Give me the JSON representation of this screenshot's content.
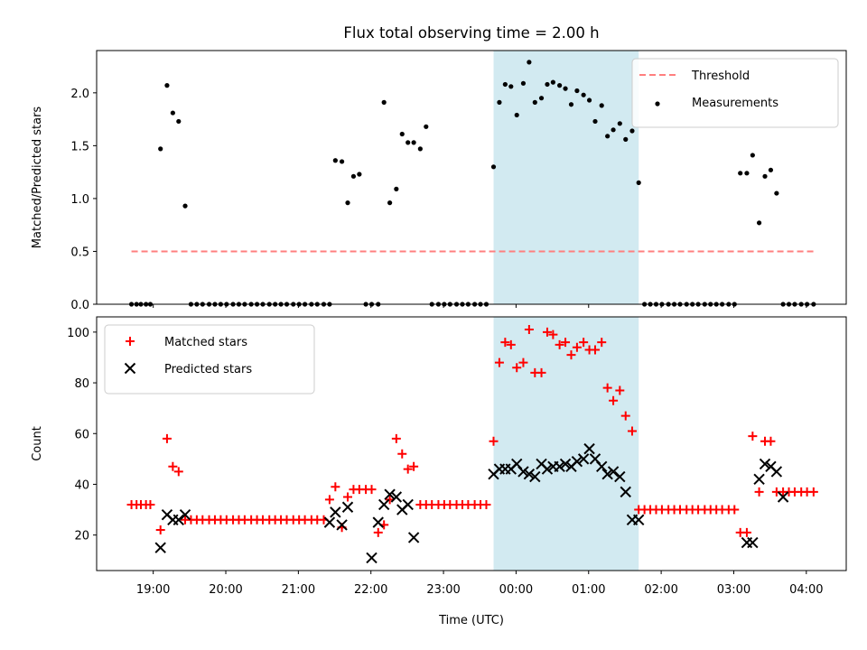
{
  "title": "Flux total observing time = 2.00 h",
  "x_axis": {
    "label": "Time (UTC)",
    "ticks": [
      {
        "t": 19.0,
        "label": "19:00"
      },
      {
        "t": 20.0,
        "label": "20:00"
      },
      {
        "t": 21.0,
        "label": "21:00"
      },
      {
        "t": 22.0,
        "label": "22:00"
      },
      {
        "t": 23.0,
        "label": "23:00"
      },
      {
        "t": 24.0,
        "label": "00:00"
      },
      {
        "t": 25.0,
        "label": "01:00"
      },
      {
        "t": 26.0,
        "label": "02:00"
      },
      {
        "t": 27.0,
        "label": "03:00"
      },
      {
        "t": 28.0,
        "label": "04:00"
      }
    ]
  },
  "chart_data": [
    {
      "type": "scatter",
      "ylabel": "Matched/Predicted stars",
      "xlim": [
        18.22,
        28.55
      ],
      "ylim": [
        0,
        2.4
      ],
      "yticks": [
        0.0,
        0.5,
        1.0,
        1.5,
        2.0
      ],
      "ytick_labels": [
        "0.0",
        "0.5",
        "1.0",
        "1.5",
        "2.0"
      ],
      "highlight_span": {
        "from": 23.69,
        "to": 25.69,
        "color": "#add8e6"
      },
      "legend": {
        "position": "upper right",
        "entries": [
          "Threshold",
          "Measurements"
        ]
      },
      "series": [
        {
          "name": "Threshold",
          "style": "dashed-line",
          "color": "#ff7f7f",
          "x": [
            18.7,
            28.1
          ],
          "y": [
            0.5,
            0.5
          ]
        },
        {
          "name": "Measurements",
          "style": "dot",
          "color": "#000000",
          "x": [
            18.7,
            18.77,
            18.83,
            18.9,
            18.96,
            19.1,
            19.19,
            19.27,
            19.35,
            19.44,
            19.52,
            19.6,
            19.68,
            19.77,
            19.85,
            19.93,
            20.01,
            20.1,
            20.18,
            20.26,
            20.35,
            20.43,
            20.51,
            20.6,
            20.68,
            20.76,
            20.84,
            20.93,
            21.01,
            21.09,
            21.18,
            21.26,
            21.35,
            21.43,
            21.51,
            21.6,
            21.68,
            21.76,
            21.84,
            21.93,
            22.01,
            22.1,
            22.18,
            22.26,
            22.35,
            22.43,
            22.51,
            22.59,
            22.68,
            22.76,
            22.84,
            22.93,
            23.01,
            23.09,
            23.18,
            23.26,
            23.34,
            23.43,
            23.51,
            23.59,
            23.69,
            23.77,
            23.85,
            23.93,
            24.01,
            24.1,
            24.18,
            24.26,
            24.35,
            24.43,
            24.51,
            24.6,
            24.68,
            24.76,
            24.84,
            24.93,
            25.01,
            25.09,
            25.18,
            25.26,
            25.34,
            25.43,
            25.51,
            25.6,
            25.69,
            25.77,
            25.85,
            25.93,
            26.01,
            26.1,
            26.18,
            26.26,
            26.35,
            26.43,
            26.51,
            26.6,
            26.68,
            26.76,
            26.84,
            26.93,
            27.01,
            27.09,
            27.18,
            27.26,
            27.35,
            27.43,
            27.51,
            27.59,
            27.68,
            27.76,
            27.84,
            27.93,
            28.01,
            28.1
          ],
          "y": [
            0,
            0,
            0,
            0,
            0,
            1.47,
            2.07,
            1.81,
            1.73,
            0.93,
            0,
            0,
            0,
            0,
            0,
            0,
            0,
            0,
            0,
            0,
            0,
            0,
            0,
            0,
            0,
            0,
            0,
            0,
            0,
            0,
            0,
            0,
            0,
            0,
            1.36,
            1.35,
            0.96,
            1.21,
            1.23,
            0,
            0,
            0,
            1.91,
            0.96,
            1.09,
            1.61,
            1.53,
            1.53,
            1.47,
            1.68,
            0,
            0,
            0,
            0,
            0,
            0,
            0,
            0,
            0,
            0,
            1.3,
            1.91,
            2.08,
            2.06,
            1.79,
            2.09,
            2.29,
            1.91,
            1.95,
            2.08,
            2.1,
            2.07,
            2.04,
            1.89,
            2.02,
            1.98,
            1.93,
            1.73,
            1.88,
            1.59,
            1.65,
            1.71,
            1.56,
            1.64,
            1.15,
            0,
            0,
            0,
            0,
            0,
            0,
            0,
            0,
            0,
            0,
            0,
            0,
            0,
            0,
            0,
            0,
            1.24,
            1.24,
            1.41,
            0.77,
            1.21,
            1.27,
            1.05,
            0,
            0,
            0,
            0,
            0,
            0
          ]
        }
      ]
    },
    {
      "type": "scatter",
      "ylabel": "Count",
      "xlim": [
        18.22,
        28.55
      ],
      "ylim": [
        6,
        106
      ],
      "yticks": [
        20,
        40,
        60,
        80,
        100
      ],
      "ytick_labels": [
        "20",
        "40",
        "60",
        "80",
        "100"
      ],
      "highlight_span": {
        "from": 23.69,
        "to": 25.69,
        "color": "#add8e6"
      },
      "legend": {
        "position": "upper left",
        "entries": [
          "Matched stars",
          "Predicted stars"
        ]
      },
      "series": [
        {
          "name": "Matched stars",
          "marker": "plus",
          "color": "#ff0000",
          "x": [
            18.7,
            18.77,
            18.83,
            18.9,
            18.96,
            19.1,
            19.19,
            19.27,
            19.35,
            19.44,
            19.52,
            19.6,
            19.68,
            19.77,
            19.85,
            19.93,
            20.01,
            20.1,
            20.18,
            20.26,
            20.35,
            20.43,
            20.51,
            20.6,
            20.68,
            20.76,
            20.84,
            20.93,
            21.01,
            21.09,
            21.18,
            21.26,
            21.35,
            21.43,
            21.51,
            21.6,
            21.68,
            21.76,
            21.84,
            21.93,
            22.01,
            22.1,
            22.18,
            22.26,
            22.35,
            22.43,
            22.51,
            22.59,
            22.68,
            22.76,
            22.84,
            22.93,
            23.01,
            23.09,
            23.18,
            23.26,
            23.34,
            23.43,
            23.51,
            23.59,
            23.69,
            23.77,
            23.85,
            23.93,
            24.01,
            24.1,
            24.18,
            24.26,
            24.35,
            24.43,
            24.51,
            24.6,
            24.68,
            24.76,
            24.84,
            24.93,
            25.01,
            25.09,
            25.18,
            25.26,
            25.34,
            25.43,
            25.51,
            25.6,
            25.69,
            25.77,
            25.85,
            25.93,
            26.01,
            26.1,
            26.18,
            26.26,
            26.35,
            26.43,
            26.51,
            26.6,
            26.68,
            26.76,
            26.84,
            26.93,
            27.01,
            27.09,
            27.18,
            27.26,
            27.35,
            27.43,
            27.51,
            27.59,
            27.68,
            27.76,
            27.84,
            27.93,
            28.01,
            28.1
          ],
          "y": [
            32,
            32,
            32,
            32,
            32,
            22,
            58,
            47,
            45,
            26,
            26,
            26,
            26,
            26,
            26,
            26,
            26,
            26,
            26,
            26,
            26,
            26,
            26,
            26,
            26,
            26,
            26,
            26,
            26,
            26,
            26,
            26,
            26,
            34,
            39,
            23,
            35,
            38,
            38,
            38,
            38,
            21,
            24,
            34,
            58,
            52,
            46,
            47,
            32,
            32,
            32,
            32,
            32,
            32,
            32,
            32,
            32,
            32,
            32,
            32,
            57,
            88,
            96,
            95,
            86,
            88,
            101,
            84,
            84,
            100,
            99,
            95,
            96,
            91,
            94,
            96,
            93,
            93,
            96,
            78,
            73,
            77,
            67,
            61,
            30,
            30,
            30,
            30,
            30,
            30,
            30,
            30,
            30,
            30,
            30,
            30,
            30,
            30,
            30,
            30,
            30,
            21,
            21,
            59,
            37,
            57,
            57,
            37,
            37,
            37,
            37,
            37,
            37,
            37
          ]
        },
        {
          "name": "Predicted stars",
          "marker": "x",
          "color": "#000000",
          "x": [
            19.1,
            19.19,
            19.27,
            19.35,
            19.44,
            21.43,
            21.51,
            21.6,
            21.68,
            22.01,
            22.1,
            22.18,
            22.26,
            22.35,
            22.43,
            22.51,
            22.59,
            23.69,
            23.77,
            23.85,
            23.93,
            24.01,
            24.1,
            24.18,
            24.26,
            24.35,
            24.43,
            24.51,
            24.6,
            24.68,
            24.76,
            24.84,
            24.93,
            25.01,
            25.09,
            25.18,
            25.26,
            25.34,
            25.43,
            25.51,
            25.6,
            25.69,
            27.18,
            27.26,
            27.35,
            27.43,
            27.51,
            27.59,
            27.68
          ],
          "y": [
            15,
            28,
            26,
            26,
            28,
            25,
            29,
            24,
            31,
            11,
            25,
            32,
            36,
            35,
            30,
            32,
            19,
            44,
            46,
            46,
            46,
            48,
            45,
            44,
            43,
            48,
            46,
            47,
            47,
            48,
            47,
            49,
            50,
            54,
            50,
            47,
            44,
            45,
            43,
            37,
            26,
            26,
            17,
            17,
            42,
            48,
            47,
            45,
            35
          ]
        }
      ]
    }
  ]
}
